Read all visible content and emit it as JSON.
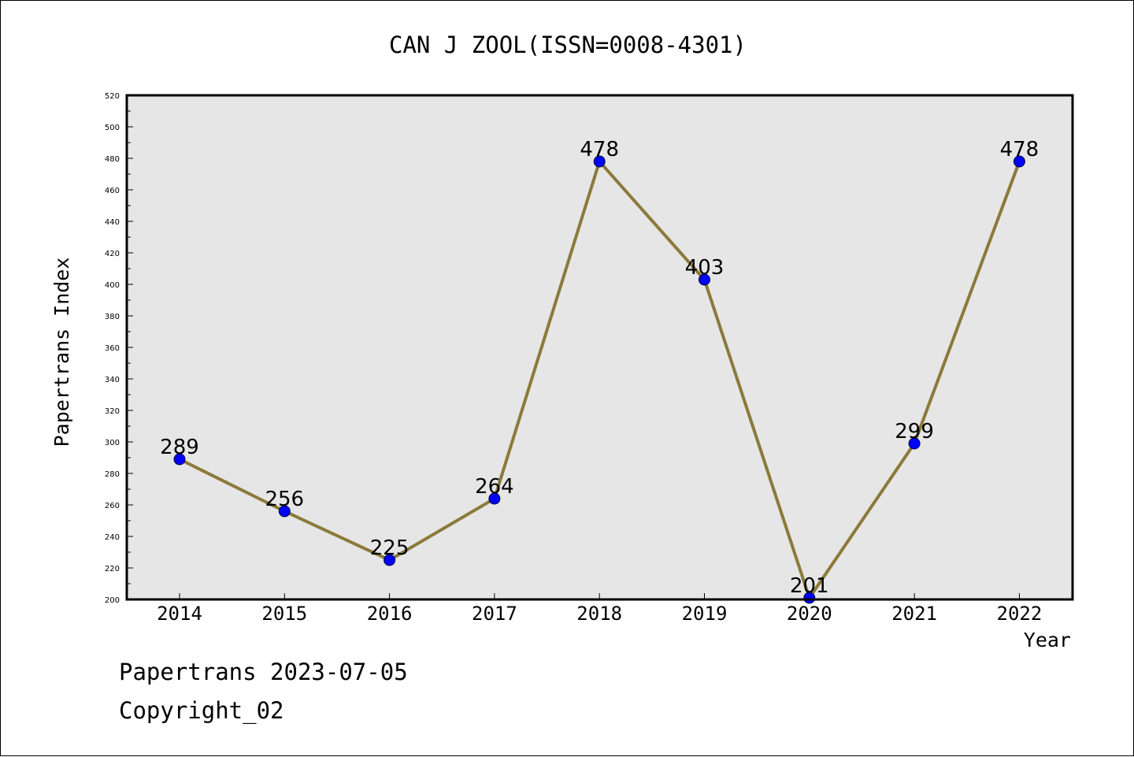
{
  "chart_data": {
    "type": "line",
    "title": "CAN J ZOOL(ISSN=0008-4301)",
    "xlabel": "Year",
    "ylabel": "Papertrans Index",
    "categories": [
      "2014",
      "2015",
      "2016",
      "2017",
      "2018",
      "2019",
      "2020",
      "2021",
      "2022"
    ],
    "series": [
      {
        "values": [
          289,
          256,
          225,
          264,
          478,
          403,
          201,
          299,
          478
        ],
        "data_labels": [
          "289",
          "256",
          "225",
          "264",
          "478",
          "403",
          "201",
          "299",
          "478"
        ],
        "line_color": "#8b7a3a",
        "marker_color": "#0000ff"
      }
    ],
    "ylim": [
      200,
      520
    ],
    "yticks": [
      200,
      220,
      240,
      260,
      280,
      300,
      320,
      340,
      360,
      380,
      400,
      420,
      440,
      460,
      480,
      500,
      520
    ],
    "ytick_labels": [
      "200",
      "220",
      "240",
      "260",
      "280",
      "300",
      "320",
      "340",
      "360",
      "380",
      "400",
      "420",
      "440",
      "460",
      "480",
      "500",
      "520"
    ],
    "plot_background": "#e6e6e6",
    "grid": false
  },
  "footer": {
    "line1": "Papertrans 2023-07-05",
    "line2": "Copyright_02"
  }
}
